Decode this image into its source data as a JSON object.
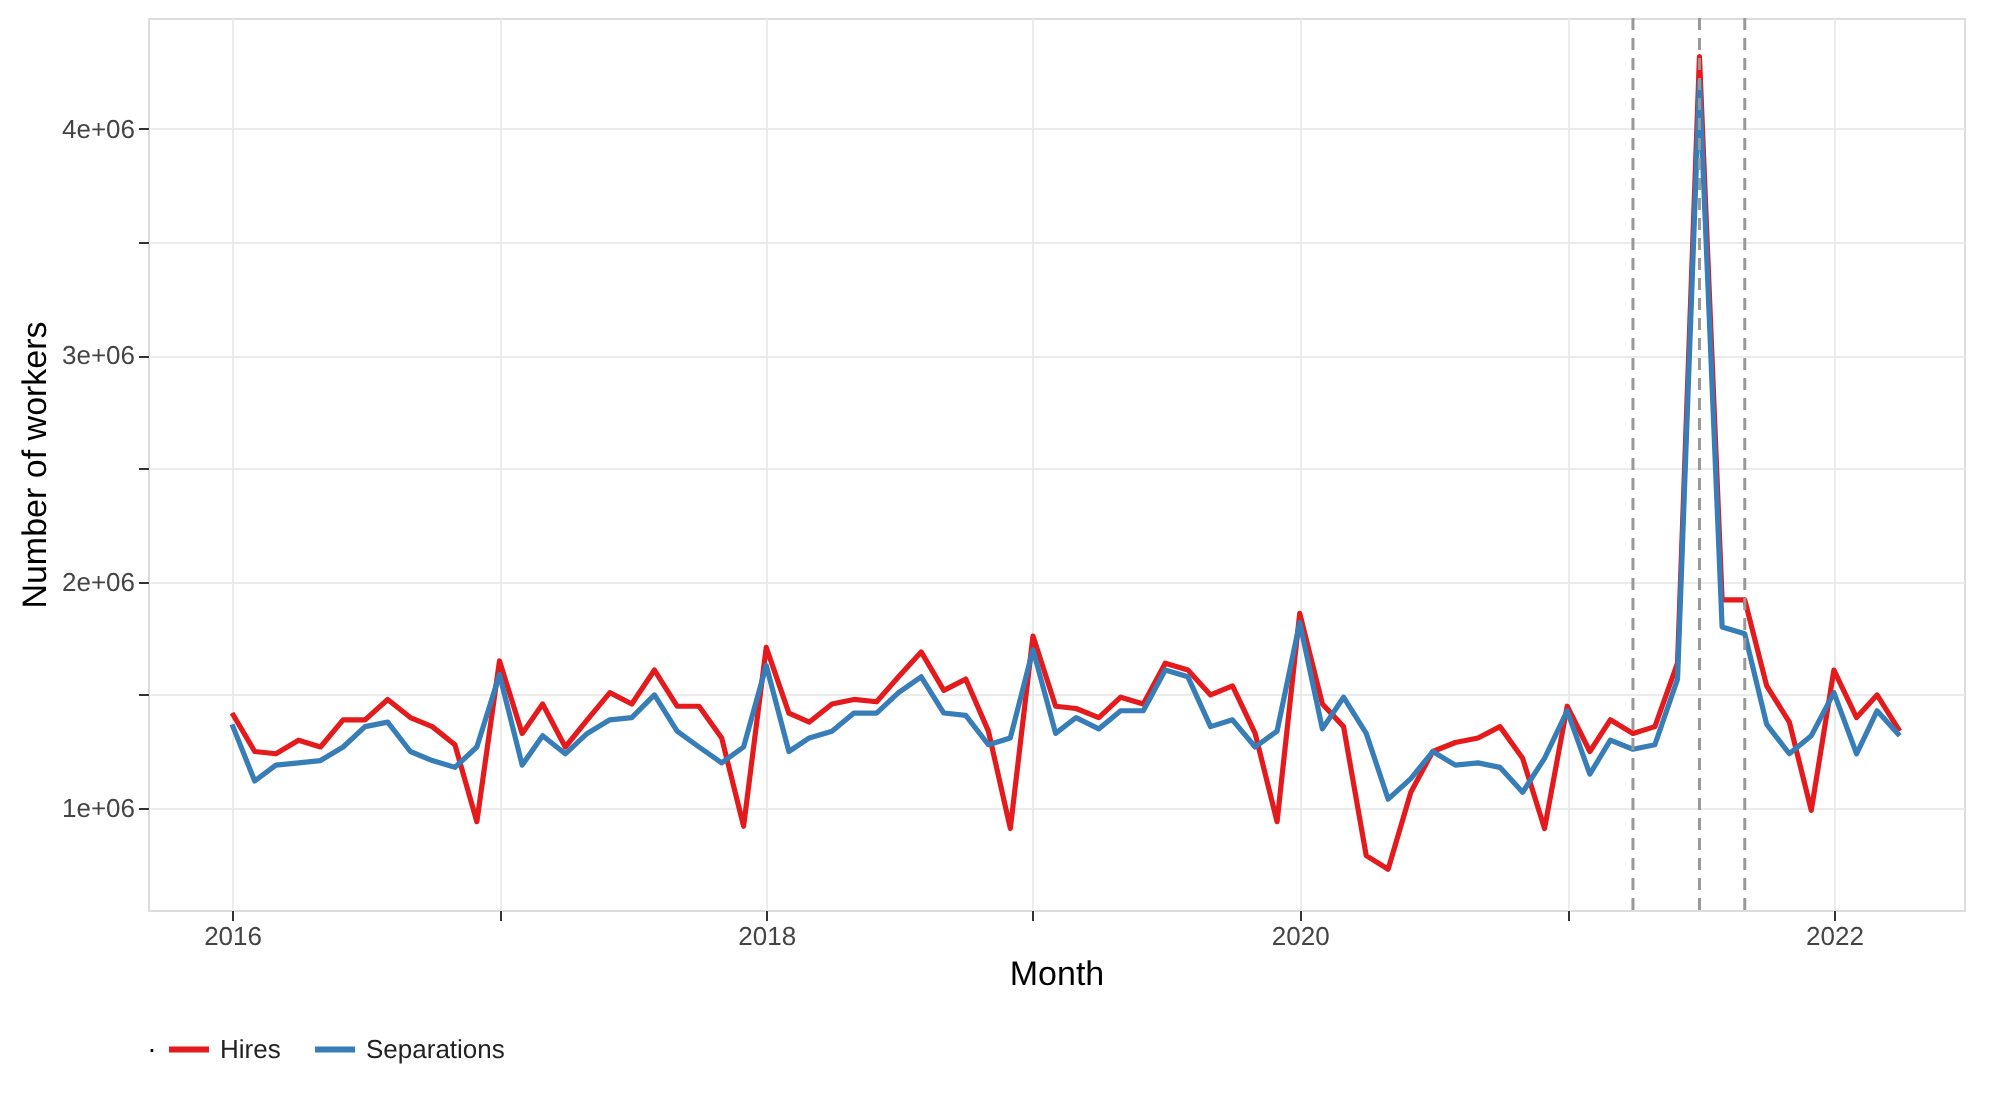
{
  "chart_data": {
    "type": "line",
    "xlabel": "Month",
    "ylabel": "Number of workers",
    "legend_title": ".",
    "legend": "bottom",
    "grid": true,
    "line_style": "solid",
    "marker": "none",
    "x": [
      "2016-01",
      "2016-02",
      "2016-03",
      "2016-04",
      "2016-05",
      "2016-06",
      "2016-07",
      "2016-08",
      "2016-09",
      "2016-10",
      "2016-11",
      "2016-12",
      "2017-01",
      "2017-02",
      "2017-03",
      "2017-04",
      "2017-05",
      "2017-06",
      "2017-07",
      "2017-08",
      "2017-09",
      "2017-10",
      "2017-11",
      "2017-12",
      "2018-01",
      "2018-02",
      "2018-03",
      "2018-04",
      "2018-05",
      "2018-06",
      "2018-07",
      "2018-08",
      "2018-09",
      "2018-10",
      "2018-11",
      "2018-12",
      "2019-01",
      "2019-02",
      "2019-03",
      "2019-04",
      "2019-05",
      "2019-06",
      "2019-07",
      "2019-08",
      "2019-09",
      "2019-10",
      "2019-11",
      "2019-12",
      "2020-01",
      "2020-02",
      "2020-03",
      "2020-04",
      "2020-05",
      "2020-06",
      "2020-07",
      "2020-08",
      "2020-09",
      "2020-10",
      "2020-11",
      "2020-12",
      "2021-01",
      "2021-02",
      "2021-03",
      "2021-04",
      "2021-05",
      "2021-06",
      "2021-07",
      "2021-08",
      "2021-09",
      "2021-10",
      "2021-11",
      "2021-12",
      "2022-01",
      "2022-02",
      "2022-03",
      "2022-04"
    ],
    "series": [
      {
        "name": "Hires",
        "color": "#e41a1c",
        "values": [
          1420000,
          1250000,
          1240000,
          1300000,
          1270000,
          1390000,
          1390000,
          1480000,
          1400000,
          1360000,
          1280000,
          940000,
          1650000,
          1330000,
          1460000,
          1270000,
          1390000,
          1510000,
          1460000,
          1610000,
          1450000,
          1450000,
          1310000,
          920000,
          1710000,
          1420000,
          1380000,
          1460000,
          1480000,
          1470000,
          1580000,
          1690000,
          1520000,
          1570000,
          1340000,
          910000,
          1760000,
          1450000,
          1440000,
          1400000,
          1490000,
          1460000,
          1640000,
          1610000,
          1500000,
          1540000,
          1330000,
          940000,
          1860000,
          1460000,
          1360000,
          790000,
          730000,
          1070000,
          1250000,
          1290000,
          1310000,
          1360000,
          1220000,
          910000,
          1450000,
          1250000,
          1390000,
          1330000,
          1360000,
          1640000,
          4320000,
          1920000,
          1920000,
          1540000,
          1380000,
          990000,
          1610000,
          1400000,
          1500000,
          1340000
        ]
      },
      {
        "name": "Separations",
        "color": "#377eb8",
        "values": [
          1370000,
          1120000,
          1190000,
          1200000,
          1210000,
          1270000,
          1360000,
          1380000,
          1250000,
          1210000,
          1180000,
          1270000,
          1590000,
          1190000,
          1320000,
          1240000,
          1330000,
          1390000,
          1400000,
          1500000,
          1340000,
          1270000,
          1200000,
          1270000,
          1630000,
          1250000,
          1310000,
          1340000,
          1420000,
          1420000,
          1510000,
          1580000,
          1420000,
          1410000,
          1280000,
          1310000,
          1700000,
          1330000,
          1400000,
          1350000,
          1430000,
          1430000,
          1610000,
          1580000,
          1360000,
          1390000,
          1270000,
          1340000,
          1820000,
          1350000,
          1490000,
          1330000,
          1040000,
          1130000,
          1250000,
          1190000,
          1200000,
          1180000,
          1070000,
          1220000,
          1430000,
          1150000,
          1300000,
          1260000,
          1280000,
          1570000,
          4210000,
          1800000,
          1770000,
          1370000,
          1240000,
          1320000,
          1510000,
          1240000,
          1430000,
          1320000
        ]
      }
    ],
    "xlim": [
      "2015-09-08",
      "2022-06-28"
    ],
    "xticks": [
      {
        "value": "2016",
        "label": "2016"
      },
      {
        "value": "2017",
        "label": null
      },
      {
        "value": "2018",
        "label": "2018"
      },
      {
        "value": "2019",
        "label": null
      },
      {
        "value": "2020",
        "label": "2020"
      },
      {
        "value": "2021",
        "label": null
      },
      {
        "value": "2022",
        "label": "2022"
      }
    ],
    "ylim": [
      550000,
      4490000
    ],
    "yticks": [
      {
        "value": 1000000,
        "label": "1e+06"
      },
      {
        "value": 1500000,
        "label": null
      },
      {
        "value": 2000000,
        "label": "2e+06"
      },
      {
        "value": 2500000,
        "label": null
      },
      {
        "value": 3000000,
        "label": "3e+06"
      },
      {
        "value": 3500000,
        "label": null
      },
      {
        "value": 4000000,
        "label": "4e+06"
      }
    ],
    "ref_lines": [
      {
        "axis": "x",
        "value": "2021-04",
        "color": "#999999",
        "line_style": "dashed"
      },
      {
        "axis": "x",
        "value": "2021-07",
        "color": "#999999",
        "line_style": "dashed"
      },
      {
        "axis": "x",
        "value": "2021-09",
        "color": "#999999",
        "line_style": "dashed"
      }
    ]
  }
}
